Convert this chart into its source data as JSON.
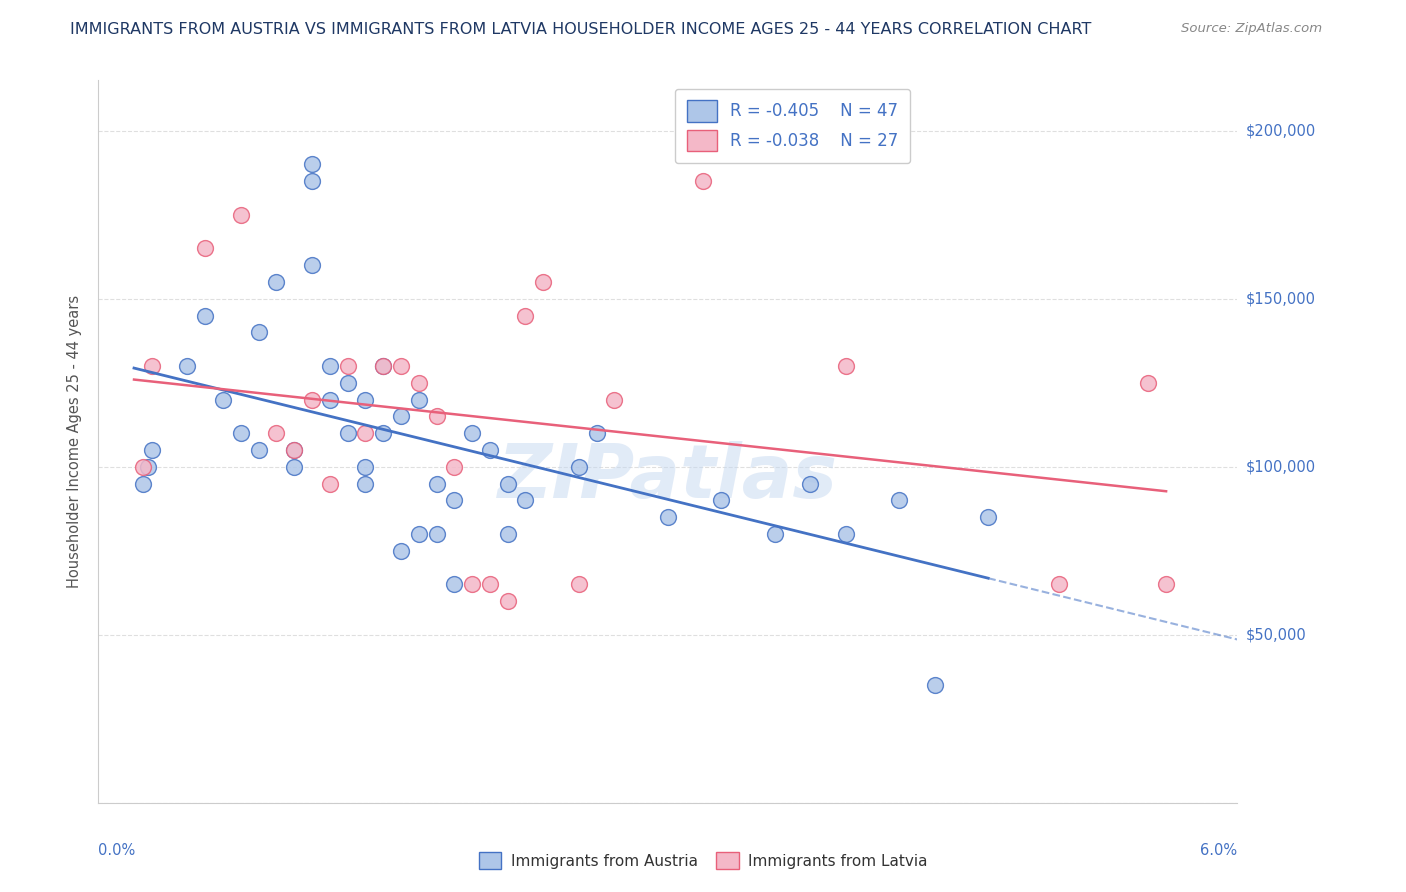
{
  "title": "IMMIGRANTS FROM AUSTRIA VS IMMIGRANTS FROM LATVIA HOUSEHOLDER INCOME AGES 25 - 44 YEARS CORRELATION CHART",
  "source": "Source: ZipAtlas.com",
  "ylabel": "Householder Income Ages 25 - 44 years",
  "austria_color": "#aec6e8",
  "latvia_color": "#f4b8c8",
  "austria_line_color": "#4472c4",
  "latvia_line_color": "#e8607a",
  "background_color": "#ffffff",
  "grid_color": "#d8d8d8",
  "watermark": "ZIPatlas",
  "legend_r_austria": "R = -0.405",
  "legend_n_austria": "N = 47",
  "legend_r_latvia": "R = -0.038",
  "legend_n_latvia": "N = 27",
  "austria_x": [
    0.0005,
    0.0008,
    0.001,
    0.003,
    0.004,
    0.005,
    0.006,
    0.007,
    0.007,
    0.008,
    0.009,
    0.009,
    0.01,
    0.01,
    0.01,
    0.011,
    0.011,
    0.012,
    0.012,
    0.013,
    0.013,
    0.013,
    0.014,
    0.014,
    0.015,
    0.015,
    0.016,
    0.016,
    0.017,
    0.017,
    0.018,
    0.018,
    0.019,
    0.02,
    0.021,
    0.021,
    0.022,
    0.025,
    0.026,
    0.03,
    0.033,
    0.036,
    0.038,
    0.04,
    0.043,
    0.045,
    0.048
  ],
  "austria_y": [
    95000,
    100000,
    105000,
    130000,
    145000,
    120000,
    110000,
    140000,
    105000,
    155000,
    105000,
    100000,
    185000,
    190000,
    160000,
    130000,
    120000,
    125000,
    110000,
    120000,
    100000,
    95000,
    110000,
    130000,
    115000,
    75000,
    120000,
    80000,
    95000,
    80000,
    90000,
    65000,
    110000,
    105000,
    95000,
    80000,
    90000,
    100000,
    110000,
    85000,
    90000,
    80000,
    95000,
    80000,
    90000,
    35000,
    85000
  ],
  "latvia_x": [
    0.0005,
    0.001,
    0.004,
    0.006,
    0.008,
    0.009,
    0.01,
    0.011,
    0.012,
    0.013,
    0.014,
    0.015,
    0.016,
    0.017,
    0.018,
    0.019,
    0.02,
    0.021,
    0.022,
    0.023,
    0.025,
    0.027,
    0.032,
    0.04,
    0.052,
    0.057,
    0.058
  ],
  "latvia_y": [
    100000,
    130000,
    165000,
    175000,
    110000,
    105000,
    120000,
    95000,
    130000,
    110000,
    130000,
    130000,
    125000,
    115000,
    100000,
    65000,
    65000,
    60000,
    145000,
    155000,
    65000,
    120000,
    185000,
    130000,
    65000,
    125000,
    65000
  ],
  "xlim": [
    -0.002,
    0.062
  ],
  "ylim": [
    0,
    215000
  ],
  "yticks": [
    0,
    50000,
    100000,
    150000,
    200000
  ],
  "title_color": "#1f3864",
  "axis_label_color": "#4472c4",
  "source_color": "#888888",
  "title_fontsize": 11.5,
  "marker_size": 130
}
